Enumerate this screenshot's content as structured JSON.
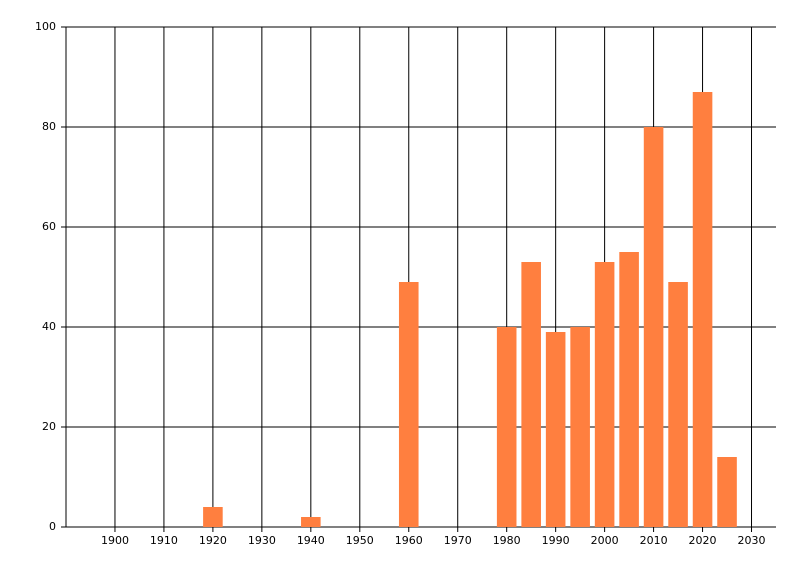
{
  "chart_data": {
    "type": "bar",
    "x": [
      1920,
      1940,
      1960,
      1980,
      1985,
      1990,
      1995,
      2000,
      2005,
      2010,
      2015,
      2020,
      2025
    ],
    "values": [
      4,
      2,
      49,
      40,
      53,
      39,
      40,
      53,
      55,
      80,
      49,
      87,
      14
    ],
    "color": "#ff7f3f",
    "xlim": [
      1890,
      2035
    ],
    "xticks": [
      1900,
      1910,
      1920,
      1930,
      1940,
      1950,
      1960,
      1970,
      1980,
      1990,
      2000,
      2010,
      2020,
      2030
    ],
    "ylim": [
      0,
      100
    ],
    "yticks": [
      0,
      20,
      40,
      60,
      80,
      100
    ],
    "grid": true
  }
}
